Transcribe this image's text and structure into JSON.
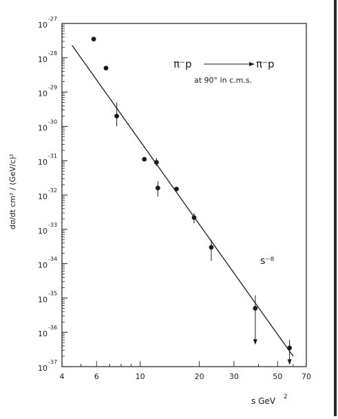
{
  "chart_data": {
    "type": "scatter",
    "title": "",
    "xlabel": "s GeV",
    "xlabel_exp": "2",
    "ylabel": "dσ/dt  cm² / (GeV/c)²",
    "x_scale": "log",
    "y_scale": "log",
    "xlim": [
      4,
      70
    ],
    "ylim": [
      1e-37,
      1e-27
    ],
    "x_ticks": [
      4,
      6,
      10,
      20,
      30,
      50,
      70
    ],
    "x_tick_labels": [
      "4",
      "6",
      "10",
      "20",
      "30",
      "50",
      "70"
    ],
    "y_tick_labels": [
      {
        "base": "10",
        "exp": "-27"
      },
      {
        "base": "10",
        "exp": "-28"
      },
      {
        "base": "10",
        "exp": "-29"
      },
      {
        "base": "10",
        "exp": "-30"
      },
      {
        "base": "10",
        "exp": "-31"
      },
      {
        "base": "10",
        "exp": "-32"
      },
      {
        "base": "10",
        "exp": "-33"
      },
      {
        "base": "10",
        "exp": "-34"
      },
      {
        "base": "10",
        "exp": "-35"
      },
      {
        "base": "10",
        "exp": "-36"
      },
      {
        "base": "10",
        "exp": "-37"
      }
    ],
    "annotations": {
      "reaction_line1_left": "π⁻p",
      "reaction_line1_right": "π⁻p",
      "reaction_line2": "at 90° in c.m.s.",
      "fit_label": "s⁻⁸"
    },
    "series": [
      {
        "points": [
          {
            "x": 5.8,
            "y": 3.5e-28
          },
          {
            "x": 6.7,
            "y": 5e-29
          },
          {
            "x": 7.6,
            "y": 2e-30,
            "y_lo": 1e-30,
            "y_hi": 5e-30
          },
          {
            "x": 10.5,
            "y": 1.1e-31
          },
          {
            "x": 12.1,
            "y": 9e-32,
            "y_lo": 7e-32,
            "y_hi": 1.2e-31
          },
          {
            "x": 12.3,
            "y": 1.6e-32,
            "y_lo": 9e-33,
            "y_hi": 2.5e-32
          },
          {
            "x": 15.3,
            "y": 1.5e-32
          },
          {
            "x": 18.8,
            "y": 2.2e-33,
            "y_lo": 1.5e-33,
            "y_hi": 3e-33
          },
          {
            "x": 23,
            "y": 3e-34,
            "y_lo": 1.2e-34,
            "y_hi": 5e-34
          },
          {
            "x": 38.5,
            "y": 5e-36,
            "y_lo": 5e-37,
            "y_hi": 1.2e-35,
            "upper_limit": true
          },
          {
            "x": 57.5,
            "y": 3.5e-37,
            "y_lo": 1.3e-37,
            "y_hi": 6e-37,
            "upper_limit": true
          }
        ]
      }
    ],
    "fit_line": {
      "label": "s⁻⁸",
      "x_start": 4.5,
      "y_start": 2.3e-28,
      "x_end": 60,
      "y_end": 2e-37
    }
  }
}
